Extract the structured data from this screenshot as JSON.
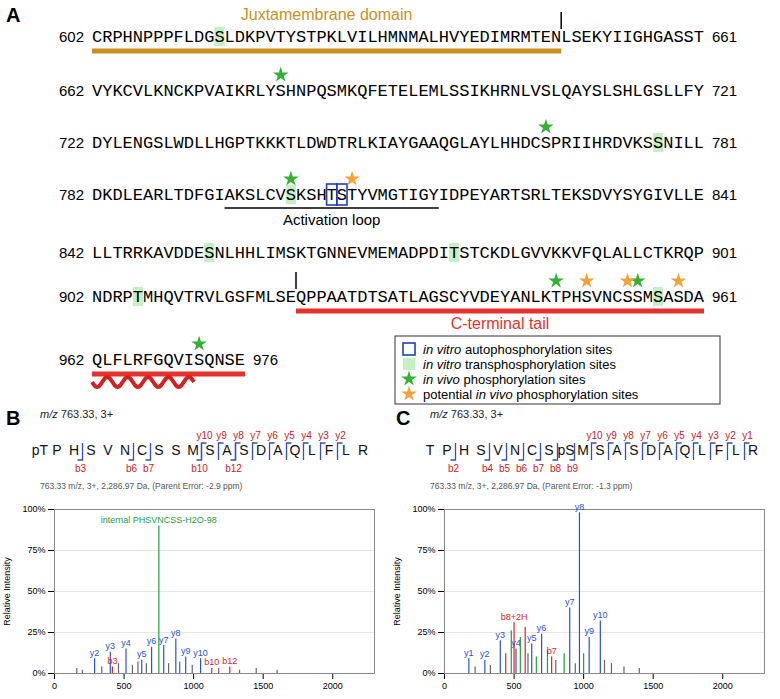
{
  "panel_a": {
    "panel_label": "A",
    "rows": [
      {
        "start": 602,
        "end": 661,
        "sequence": "CRPHNPPPFLDGSLDKPVTYSTPKLVILHMNMALHVYEDIMRMTENLSEKYIIGHGASST"
      },
      {
        "start": 662,
        "end": 721,
        "sequence": "VYKCVLKNCKPVAIKRLYSHNPQSMKQFETELEMLSSIKHRNLVSLQAYSLSHLGSLLFY"
      },
      {
        "start": 722,
        "end": 781,
        "sequence": "DYLENGSLWDLLHGPTKKKTLDWDTRLKIAYGAAQGLAYLHHDCSPRIIHRDVKSSNILL"
      },
      {
        "start": 782,
        "end": 841,
        "sequence": "DKDLEARLTDFGIAKSLCVSKSHTSTYVMGTIGYIDPEYARTSRLTEKSDVYSYGIVLLE"
      },
      {
        "start": 842,
        "end": 901,
        "sequence": "LLTRRKAVDDESNLHHLIMSKTGNNEVMEMADPDITSTCKDLGVVKKVFQLALLCTKRQP"
      },
      {
        "start": 902,
        "end": 961,
        "sequence": "NDRPTMHQVTRVLGSFMLSEQPPAATDTSATLAGSCYVDEYANLKTPHSVNCSSMSASDA"
      },
      {
        "start": 962,
        "end": 976,
        "sequence": "QLFLRFGQVISQNSE"
      }
    ],
    "juxtamembrane": {
      "label": "Juxtamembrane domain",
      "from": 602,
      "to": 647,
      "color": "#c8901e"
    },
    "activation_loop": {
      "label": "Activation loop",
      "from": 795,
      "to": 815
    },
    "c_terminal_tail": {
      "label": "C-terminal tail",
      "from": 922,
      "to": 976,
      "color": "#e5322d"
    },
    "helix": {
      "from": 962,
      "to": 971,
      "color": "#d42020"
    },
    "autophosphorylation": [
      805,
      806
    ],
    "transphosphorylation": [
      614,
      777,
      801,
      853,
      877,
      906,
      957
    ],
    "in_vivo": [
      680,
      766,
      801,
      947,
      955,
      972
    ],
    "potential_in_vivo": [
      807,
      950,
      954,
      959
    ],
    "site_key": [
      {
        "kind": "autophosphorylation",
        "label": "in vitro autophosphorylation sites"
      },
      {
        "kind": "transphosphorylation",
        "label": "in vitro transphosphorylation sites"
      },
      {
        "kind": "in_vivo",
        "label": "in vivo phosphorylation sites"
      },
      {
        "kind": "potential_in_vivo",
        "label": "potential in vivo phosphorylation sites"
      }
    ],
    "colors": {
      "autophosphorylation": "#1f3fbf",
      "transphosphorylation": "#c4f0c4",
      "in_vivo": "#35b035",
      "potential_in_vivo": "#f2a23a"
    }
  },
  "chart_data": [
    {
      "panel_label": "B",
      "type": "bar",
      "title": "m/z 763.33, 3+",
      "info": "763.33 m/z, 3+, 2,286.97 Da, (Parent Error: -2.9 ppm)",
      "residues": [
        "pT",
        "P",
        "H",
        "S",
        "V",
        "N",
        "C",
        "S",
        "S",
        "M",
        "S",
        "A",
        "S",
        "D",
        "A",
        "Q",
        "L",
        "F",
        "L",
        "R"
      ],
      "b_ions": [
        {
          "n": 3,
          "label": "b3"
        },
        {
          "n": 6,
          "label": "b6"
        },
        {
          "n": 7,
          "label": "b7"
        },
        {
          "n": 10,
          "label": "b10"
        },
        {
          "n": 12,
          "label": "b12"
        }
      ],
      "y_ions": [
        {
          "n": 10,
          "label": "y10"
        },
        {
          "n": 9,
          "label": "y9"
        },
        {
          "n": 8,
          "label": "y8"
        },
        {
          "n": 7,
          "label": "y7"
        },
        {
          "n": 6,
          "label": "y6"
        },
        {
          "n": 5,
          "label": "y5"
        },
        {
          "n": 4,
          "label": "y4"
        },
        {
          "n": 3,
          "label": "y3"
        },
        {
          "n": 2,
          "label": "y2"
        }
      ],
      "ion_colors": {
        "bracket": "#3050c0",
        "label": "#d02020"
      },
      "x": [
        160,
        200,
        288,
        340,
        401,
        416,
        460,
        514,
        560,
        600,
        627,
        660,
        698,
        750,
        785,
        820,
        872,
        900,
        943,
        990,
        1050,
        1130,
        1180,
        1260,
        1330,
        1450,
        1600
      ],
      "values": [
        3,
        2,
        9,
        4,
        13,
        4,
        6,
        15,
        5,
        7,
        8,
        6,
        16,
        90,
        17,
        6,
        21,
        7,
        10,
        5,
        9,
        3,
        3,
        4,
        2,
        3,
        2
      ],
      "peak_labels": [
        null,
        null,
        "y2",
        null,
        "y3",
        "b3",
        null,
        "y4",
        null,
        null,
        "y5",
        null,
        "y6",
        "internal PHSVNCSS-H2O-98",
        "y7",
        null,
        "y8",
        null,
        "y9",
        null,
        "y10",
        "b10",
        null,
        "b12",
        null,
        null,
        null
      ],
      "colors": [
        "#666666",
        "#666666",
        "#2b50d8",
        "#666666",
        "#2b50d8",
        "#e02020",
        "#666666",
        "#2b50d8",
        "#666666",
        "#666666",
        "#2b50d8",
        "#666666",
        "#2b50d8",
        "#21a038",
        "#2b50d8",
        "#666666",
        "#2b50d8",
        "#666666",
        "#2b50d8",
        "#666666",
        "#2b50d8",
        "#e02020",
        "#666666",
        "#e02020",
        "#666666",
        "#666666",
        "#666666"
      ],
      "xlim": [
        0,
        2300
      ],
      "xticks": [
        0,
        500,
        1000,
        1500,
        2000
      ],
      "ylim": [
        0,
        100
      ],
      "yticks": [
        {
          "value": 0,
          "label": "0%"
        },
        {
          "value": 25,
          "label": "25%"
        },
        {
          "value": 50,
          "label": "50%"
        },
        {
          "value": 75,
          "label": "75%"
        },
        {
          "value": 100,
          "label": "100%"
        }
      ],
      "ylabel": "Relative Intensity",
      "grid": true
    },
    {
      "panel_label": "C",
      "type": "bar",
      "title": "m/z 763.33, 3+",
      "info": "763.33 m/z, 3+, 2,286.97 Da, (Parent Error: -1.3 ppm)",
      "residues": [
        "T",
        "P",
        "H",
        "S",
        "V",
        "N",
        "C",
        "S",
        "pS",
        "M",
        "S",
        "A",
        "S",
        "D",
        "A",
        "Q",
        "L",
        "F",
        "L",
        "R"
      ],
      "b_ions": [
        {
          "n": 2,
          "label": "b2"
        },
        {
          "n": 4,
          "label": "b4"
        },
        {
          "n": 5,
          "label": "b5"
        },
        {
          "n": 6,
          "label": "b6"
        },
        {
          "n": 7,
          "label": "b7"
        },
        {
          "n": 8,
          "label": "b8"
        },
        {
          "n": 9,
          "label": "b9"
        }
      ],
      "y_ions": [
        {
          "n": 10,
          "label": "y10"
        },
        {
          "n": 9,
          "label": "y9"
        },
        {
          "n": 8,
          "label": "y8"
        },
        {
          "n": 7,
          "label": "y7"
        },
        {
          "n": 6,
          "label": "y6"
        },
        {
          "n": 5,
          "label": "y5"
        },
        {
          "n": 4,
          "label": "y4"
        },
        {
          "n": 3,
          "label": "y3"
        },
        {
          "n": 2,
          "label": "y2"
        },
        {
          "n": 1,
          "label": "y1"
        }
      ],
      "ion_colors": {
        "bracket": "#3050c0",
        "label": "#d02020"
      },
      "x": [
        175,
        220,
        290,
        330,
        401,
        440,
        480,
        500,
        514,
        545,
        580,
        600,
        627,
        660,
        698,
        740,
        770,
        800,
        860,
        900,
        940,
        970,
        1000,
        1040,
        1120,
        1150,
        1200,
        1290,
        1400
      ],
      "values": [
        9,
        4,
        8,
        5,
        20,
        12,
        26,
        31,
        15,
        22,
        28,
        12,
        18,
        10,
        24,
        14,
        10,
        8,
        12,
        40,
        6,
        98,
        12,
        22,
        32,
        8,
        6,
        4,
        3
      ],
      "peak_labels": [
        "y1",
        null,
        "y2",
        null,
        "y3",
        null,
        null,
        "b8+2H",
        "y4",
        null,
        null,
        null,
        "y5",
        null,
        "y6",
        null,
        "b7",
        null,
        null,
        "y7",
        null,
        "y8",
        null,
        "y9",
        "y10",
        null,
        null,
        null,
        null
      ],
      "colors": [
        "#2b50d8",
        "#666666",
        "#2b50d8",
        "#666666",
        "#2b50d8",
        "#e02020",
        "#21a038",
        "#e02020",
        "#2b50d8",
        "#21a038",
        "#e02020",
        "#666666",
        "#2b50d8",
        "#21a038",
        "#2b50d8",
        "#21a038",
        "#e02020",
        "#666666",
        "#21a038",
        "#2b50d8",
        "#666666",
        "#2b50d8",
        "#21a038",
        "#2b50d8",
        "#2b50d8",
        "#666666",
        "#666666",
        "#666666",
        "#666666"
      ],
      "xlim": [
        0,
        2300
      ],
      "xticks": [
        0,
        500,
        1000,
        1500,
        2000
      ],
      "ylim": [
        0,
        100
      ],
      "yticks": [
        {
          "value": 0,
          "label": "0%"
        },
        {
          "value": 25,
          "label": "25%"
        },
        {
          "value": 50,
          "label": "50%"
        },
        {
          "value": 75,
          "label": "75%"
        },
        {
          "value": 100,
          "label": "100%"
        }
      ],
      "ylabel": "Relative Intensity",
      "grid": true
    }
  ]
}
